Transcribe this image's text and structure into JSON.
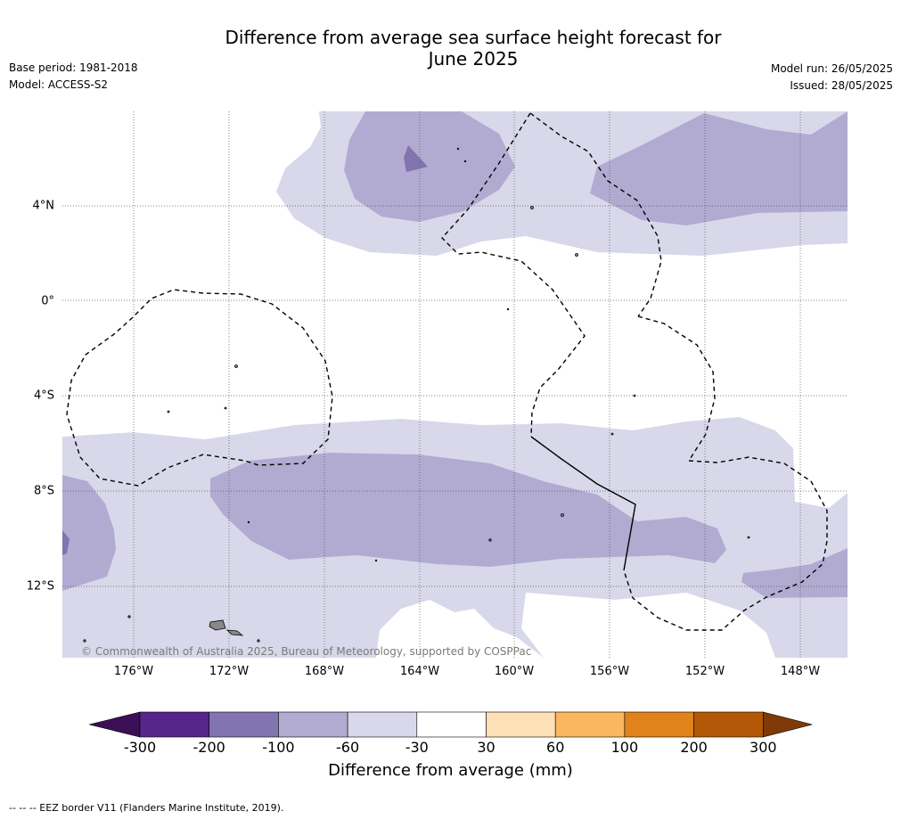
{
  "title": {
    "line1": "Difference from average sea surface height forecast for",
    "line2": "June 2025"
  },
  "meta_left": {
    "base_period": "Base period: 1981-2018",
    "model": "Model: ACCESS-S2"
  },
  "meta_right": {
    "model_run": "Model run: 26/05/2025",
    "issued": "Issued: 28/05/2025"
  },
  "lat_labels": [
    "4°N",
    "0°",
    "4°S",
    "8°S",
    "12°S"
  ],
  "lon_labels": [
    "176°W",
    "172°W",
    "168°W",
    "164°W",
    "160°W",
    "156°W",
    "152°W",
    "148°W"
  ],
  "credit": "© Commonwealth of Australia 2025, Bureau of Meteorology, supported by COSPPac",
  "colorbar": {
    "title": "Difference from average (mm)",
    "ticks": [
      "-300",
      "-200",
      "-100",
      "-60",
      "-30",
      "30",
      "60",
      "100",
      "200",
      "300"
    ],
    "colors": [
      "#3b0f55",
      "#57268a",
      "#8274ae",
      "#b1abd1",
      "#d8d8ea",
      "#ffffff",
      "#fee0b6",
      "#fbb760",
      "#e1821a",
      "#b35807",
      "#7f3a08"
    ]
  },
  "footer": "--  --  -- EEZ border V11 (Flanders Marine Institute, 2019).",
  "colors": {
    "land": "#888888",
    "eez": "#000000",
    "grid": "#555555"
  }
}
